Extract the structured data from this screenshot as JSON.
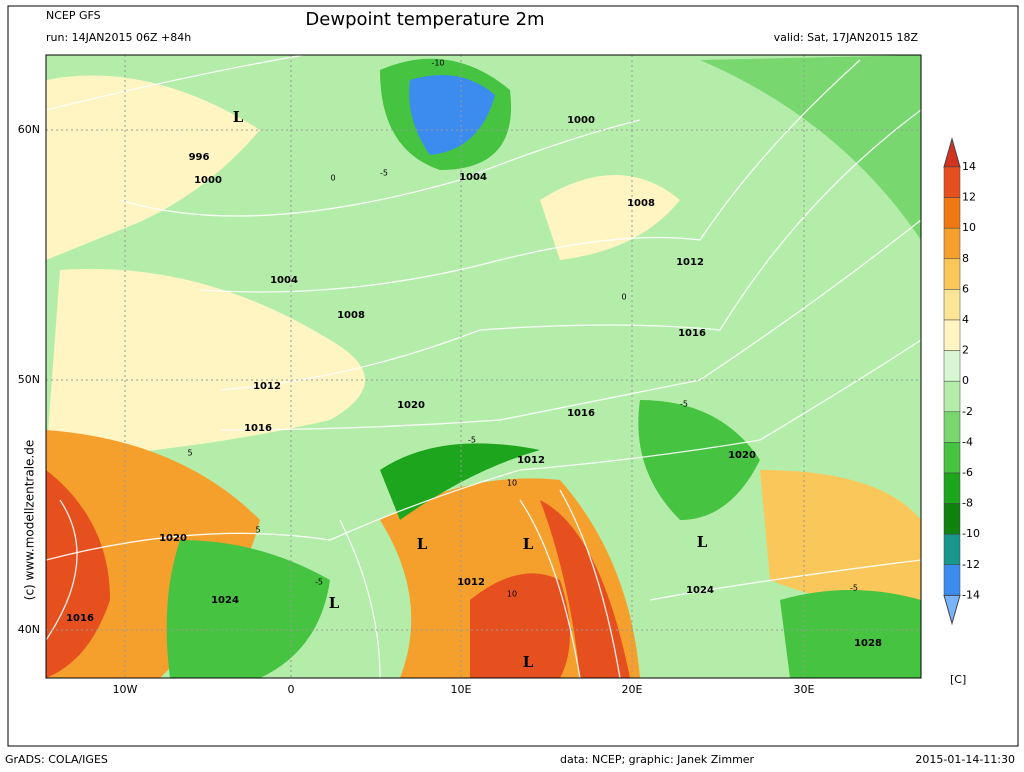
{
  "header": {
    "model": "NCEP GFS",
    "title": "Dewpoint temperature 2m",
    "run": "run: 14JAN2015 06Z +84h",
    "valid": "valid: Sat, 17JAN2015 18Z"
  },
  "watermark": "(c) www.modellzentrale.de",
  "axes": {
    "lat_labels": [
      "60N",
      "50N",
      "40N"
    ],
    "lon_labels": [
      "10W",
      "0",
      "10E",
      "20E",
      "30E"
    ]
  },
  "colorbar": {
    "ticks": [
      14,
      12,
      10,
      8,
      6,
      4,
      2,
      0,
      -2,
      -4,
      -6,
      -8,
      -10,
      -12,
      -14
    ],
    "unit": "[C]",
    "colors": [
      "#d2321e",
      "#e6501e",
      "#f07814",
      "#f5a02d",
      "#fac85a",
      "#fae696",
      "#fff5c3",
      "#d7f7d2",
      "#b4edaa",
      "#78d76e",
      "#46c341",
      "#1ea51e",
      "#0f820f",
      "#19968c",
      "#3c8cf0",
      "#78b4fa"
    ]
  },
  "isobar_labels": [
    "996",
    "1000",
    "1004",
    "1008",
    "1012",
    "1016",
    "1020",
    "1020",
    "1016",
    "1024",
    "1012",
    "1012",
    "1016",
    "1004",
    "1000",
    "1008",
    "1012",
    "1016",
    "1020",
    "1024",
    "1028"
  ],
  "lows": [
    "L",
    "L",
    "L",
    "L",
    "L",
    "L"
  ],
  "contour_labels": [
    "-10",
    "-5",
    "0",
    "5",
    "-5",
    "10",
    "-5",
    "-5",
    "5",
    "-5",
    "10",
    "0"
  ],
  "footer": {
    "software": "GrADS: COLA/IGES",
    "credit": "data: NCEP; graphic: Janek Zimmer",
    "timestamp": "2015-01-14-11:30"
  }
}
